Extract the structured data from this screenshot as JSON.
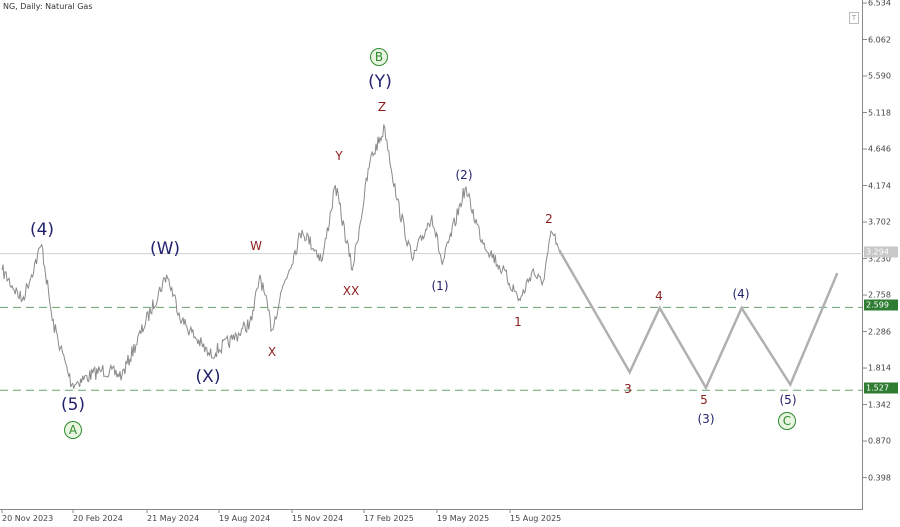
{
  "header": {
    "title": "NG, Daily:  Natural Gas",
    "icon": "trade-levels-icon"
  },
  "colors": {
    "price": "#8a8a8a",
    "projection": "#b0b0b0",
    "level": "#2e7d32",
    "wave_navy": "#22226e",
    "wave_red": "#8b1c1c",
    "wave_green": "#2e8b2e"
  },
  "chart_data": {
    "type": "line",
    "title": "NG, Daily:  Natural Gas",
    "ylim": [
      0.2,
      6.6
    ],
    "y_ticks": [
      "6.534",
      "6.062",
      "5.590",
      "5.118",
      "4.646",
      "4.174",
      "3.702",
      "3.230",
      "2.758",
      "2.286",
      "1.814",
      "1.342",
      "0.870",
      "0.398"
    ],
    "x_ticks": [
      "20 Nov 2023",
      "20 Feb 2024",
      "21 May 2024",
      "19 Aug 2024",
      "15 Nov 2024",
      "17 Feb 2025",
      "19 May 2025",
      "15 Aug 2025"
    ],
    "grid": false,
    "current_price": "3.294",
    "levels": [
      {
        "value": "2.599"
      },
      {
        "value": "1.527"
      }
    ],
    "series": [
      {
        "kind": "price",
        "points": [
          [
            "2023-11-20",
            3.08
          ],
          [
            "2023-12-15",
            2.69
          ],
          [
            "2024-01-08",
            3.41
          ],
          [
            "2024-01-21",
            2.43
          ],
          [
            "2024-02-14",
            1.6
          ],
          [
            "2024-03-22",
            1.79
          ],
          [
            "2024-04-16",
            1.72
          ],
          [
            "2024-06-10",
            3.02
          ],
          [
            "2024-06-29",
            2.43
          ],
          [
            "2024-08-02",
            1.98
          ],
          [
            "2024-08-30",
            2.18
          ],
          [
            "2024-09-23",
            2.43
          ],
          [
            "2024-10-03",
            3.02
          ],
          [
            "2024-10-18",
            2.31
          ],
          [
            "2024-10-30",
            2.82
          ],
          [
            "2024-11-24",
            3.6
          ],
          [
            "2024-12-19",
            3.21
          ],
          [
            "2025-01-04",
            4.18
          ],
          [
            "2025-01-25",
            3.08
          ],
          [
            "2025-02-16",
            4.5
          ],
          [
            "2025-03-06",
            4.92
          ],
          [
            "2025-03-21",
            3.99
          ],
          [
            "2025-04-09",
            3.21
          ],
          [
            "2025-05-03",
            3.79
          ],
          [
            "2025-05-16",
            3.15
          ],
          [
            "2025-06-13",
            4.14
          ],
          [
            "2025-07-04",
            3.47
          ],
          [
            "2025-07-29",
            3.08
          ],
          [
            "2025-08-20",
            2.69
          ],
          [
            "2025-09-04",
            3.08
          ],
          [
            "2025-09-16",
            2.89
          ],
          [
            "2025-09-28",
            3.57
          ],
          [
            "2025-10-07",
            3.34
          ]
        ]
      },
      {
        "kind": "projection",
        "points": [
          [
            "2025-10-07",
            3.34
          ],
          [
            "2026-01-02",
            1.76
          ],
          [
            "2026-02-08",
            2.59
          ],
          [
            "2026-04-06",
            1.56
          ],
          [
            "2026-05-20",
            2.59
          ],
          [
            "2026-07-19",
            1.6
          ],
          [
            "2026-09-15",
            3.04
          ]
        ]
      }
    ],
    "wave_labels": [
      "(4)",
      "(5)",
      "A",
      "(W)",
      "(X)",
      "W",
      "X",
      "Y",
      "XX",
      "Z",
      "(Y)",
      "B",
      "(1)",
      "(2)",
      "1",
      "2",
      "3",
      "4",
      "5",
      "(3)",
      "(4)",
      "(5)",
      "C"
    ]
  }
}
